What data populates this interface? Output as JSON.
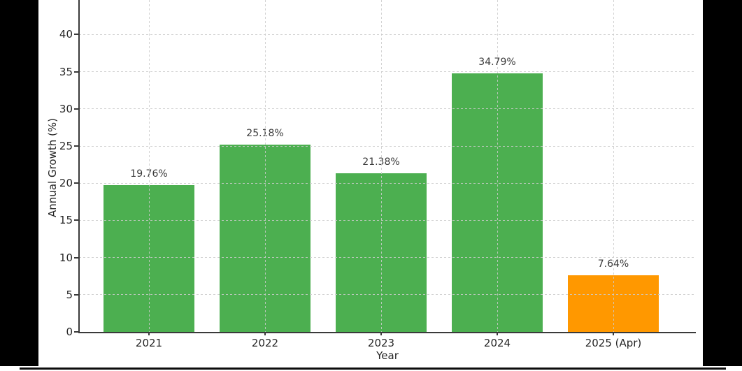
{
  "figure": {
    "letterbox_color": "#000000",
    "canvas_color": "#ffffff",
    "bottom_border_color": "#0d0d0d"
  },
  "chart_data": {
    "type": "bar",
    "title": "",
    "xlabel": "Year",
    "ylabel": "Annual Growth (%)",
    "categories": [
      "2021",
      "2022",
      "2023",
      "2024",
      "2025 (Apr)"
    ],
    "values": [
      19.76,
      25.18,
      21.38,
      34.79,
      7.64
    ],
    "value_labels": [
      "19.76%",
      "25.18%",
      "21.38%",
      "34.79%",
      "7.64%"
    ],
    "bar_colors": [
      "#4caf50",
      "#4caf50",
      "#4caf50",
      "#4caf50",
      "#ff9800"
    ],
    "yticks": [
      0,
      5,
      10,
      15,
      20,
      25,
      30,
      35,
      40
    ],
    "ylim": [
      0,
      44.6
    ],
    "grid": "dashed-both-axes",
    "legend": "none",
    "accent_colors": {
      "green": "#4caf50",
      "orange": "#ff9800",
      "gridline": "#cbcbcb",
      "axis": "#3a3a3a",
      "text": "#262626"
    }
  }
}
